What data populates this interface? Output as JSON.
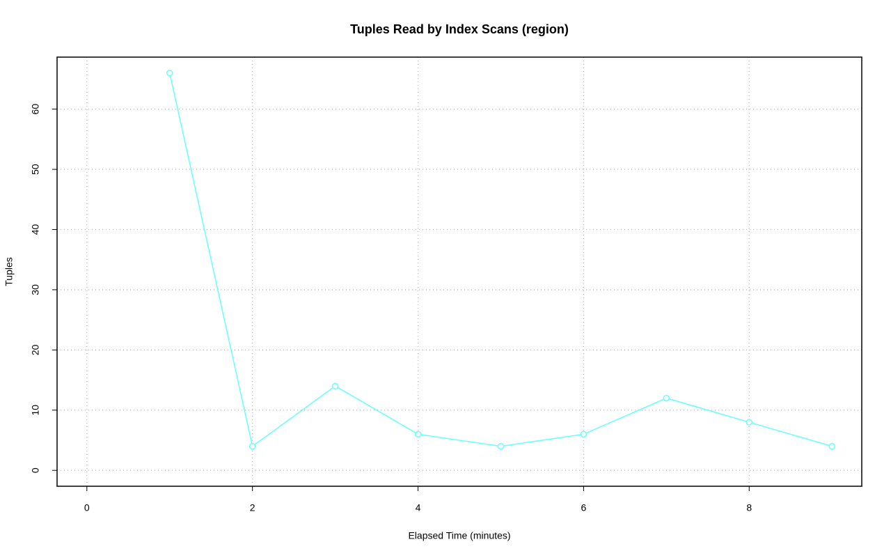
{
  "chart_data": {
    "type": "line",
    "title": "Tuples Read by Index Scans (region)",
    "x_label": "Elapsed Time (minutes)",
    "y_label": "Tuples",
    "x": [
      1,
      2,
      3,
      4,
      5,
      6,
      7,
      8,
      9
    ],
    "series": [
      {
        "name": "region",
        "color": "#66ffff",
        "values": [
          66,
          4,
          14,
          6,
          4,
          6,
          12,
          8,
          4
        ]
      }
    ],
    "xlim": [
      -0.36,
      9.36
    ],
    "ylim": [
      -2.64,
      68.64
    ],
    "xticks": [
      0,
      2,
      4,
      6,
      8
    ],
    "yticks": [
      0,
      10,
      20,
      30,
      40,
      50,
      60
    ],
    "grid": true
  }
}
